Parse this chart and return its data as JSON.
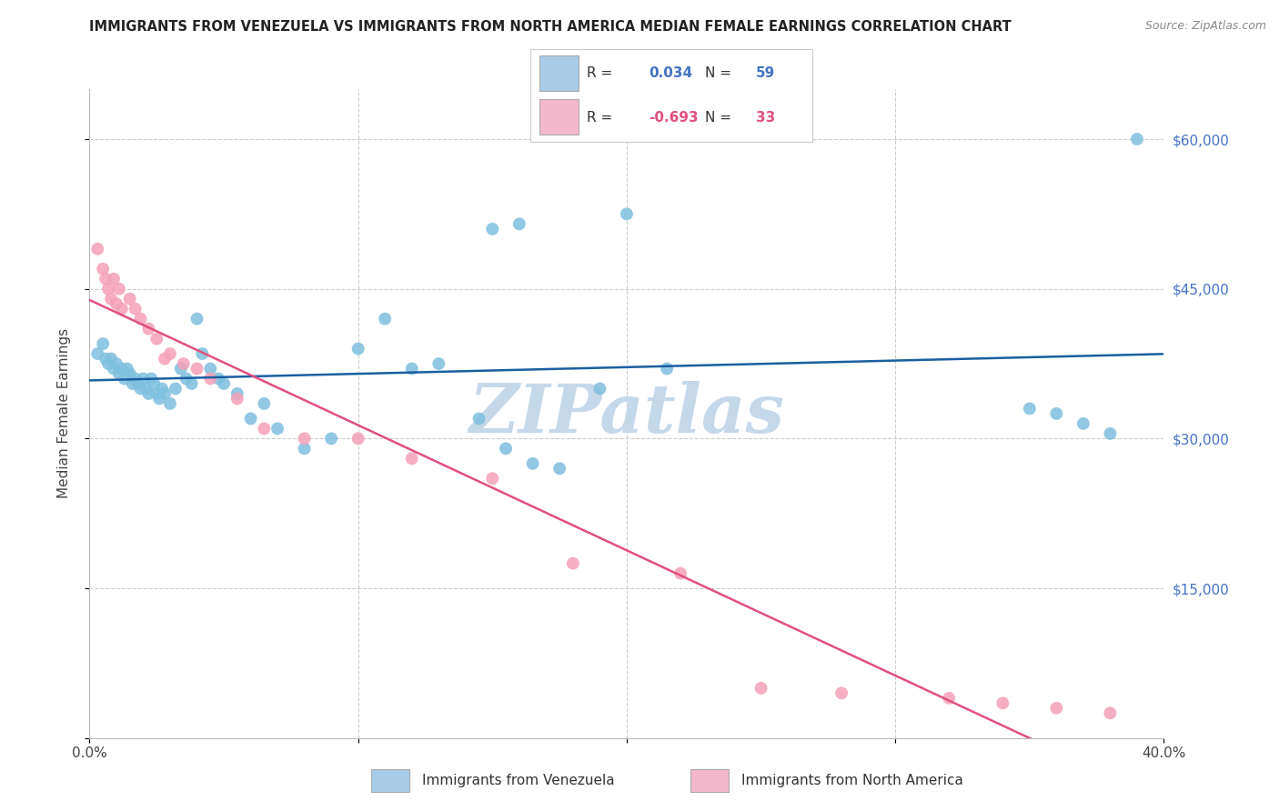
{
  "title": "IMMIGRANTS FROM VENEZUELA VS IMMIGRANTS FROM NORTH AMERICA MEDIAN FEMALE EARNINGS CORRELATION CHART",
  "source": "Source: ZipAtlas.com",
  "ylabel": "Median Female Earnings",
  "x_min": 0.0,
  "x_max": 0.4,
  "y_min": 0,
  "y_max": 65000,
  "y_ticks": [
    0,
    15000,
    30000,
    45000,
    60000
  ],
  "y_tick_labels": [
    "",
    "$15,000",
    "$30,000",
    "$45,000",
    "$60,000"
  ],
  "x_ticks": [
    0.0,
    0.1,
    0.2,
    0.3,
    0.4
  ],
  "x_tick_labels": [
    "0.0%",
    "",
    "",
    "",
    "40.0%"
  ],
  "color_blue": "#7fbfdf",
  "color_pink": "#f4a0b8",
  "line_blue": "#1a5fa0",
  "line_pink": "#e05080",
  "legend_box_blue": "#a8cce8",
  "legend_box_pink": "#f4b8cc",
  "background_color": "#ffffff",
  "grid_color": "#cccccc",
  "watermark": "ZIPatlas",
  "watermark_color": "#c5d8ea",
  "venezuela_x": [
    0.003,
    0.005,
    0.006,
    0.007,
    0.008,
    0.009,
    0.01,
    0.011,
    0.012,
    0.013,
    0.014,
    0.015,
    0.016,
    0.017,
    0.018,
    0.019,
    0.02,
    0.021,
    0.022,
    0.023,
    0.024,
    0.025,
    0.026,
    0.027,
    0.028,
    0.03,
    0.032,
    0.034,
    0.036,
    0.038,
    0.04,
    0.042,
    0.045,
    0.048,
    0.05,
    0.055,
    0.06,
    0.065,
    0.07,
    0.08,
    0.09,
    0.1,
    0.11,
    0.12,
    0.13,
    0.145,
    0.155,
    0.165,
    0.175,
    0.19,
    0.15,
    0.16,
    0.2,
    0.215,
    0.35,
    0.36,
    0.37,
    0.38,
    0.39
  ],
  "venezuela_y": [
    38500,
    39500,
    38000,
    37500,
    38000,
    37000,
    37500,
    36500,
    37000,
    36000,
    37000,
    36500,
    35500,
    36000,
    35500,
    35000,
    36000,
    35000,
    34500,
    36000,
    35500,
    34500,
    34000,
    35000,
    34500,
    33500,
    35000,
    37000,
    36000,
    35500,
    42000,
    38500,
    37000,
    36000,
    35500,
    34500,
    32000,
    33500,
    31000,
    29000,
    30000,
    39000,
    42000,
    37000,
    37500,
    32000,
    29000,
    27500,
    27000,
    35000,
    51000,
    51500,
    52500,
    37000,
    33000,
    32500,
    31500,
    30500,
    60000
  ],
  "north_america_x": [
    0.003,
    0.005,
    0.006,
    0.007,
    0.008,
    0.009,
    0.01,
    0.011,
    0.012,
    0.015,
    0.017,
    0.019,
    0.022,
    0.025,
    0.028,
    0.03,
    0.035,
    0.04,
    0.045,
    0.055,
    0.065,
    0.08,
    0.1,
    0.12,
    0.15,
    0.18,
    0.22,
    0.25,
    0.28,
    0.32,
    0.34,
    0.36,
    0.38
  ],
  "north_america_y": [
    49000,
    47000,
    46000,
    45000,
    44000,
    46000,
    43500,
    45000,
    43000,
    44000,
    43000,
    42000,
    41000,
    40000,
    38000,
    38500,
    37500,
    37000,
    36000,
    34000,
    31000,
    30000,
    30000,
    28000,
    26000,
    17500,
    16500,
    5000,
    4500,
    4000,
    3500,
    3000,
    2500
  ]
}
